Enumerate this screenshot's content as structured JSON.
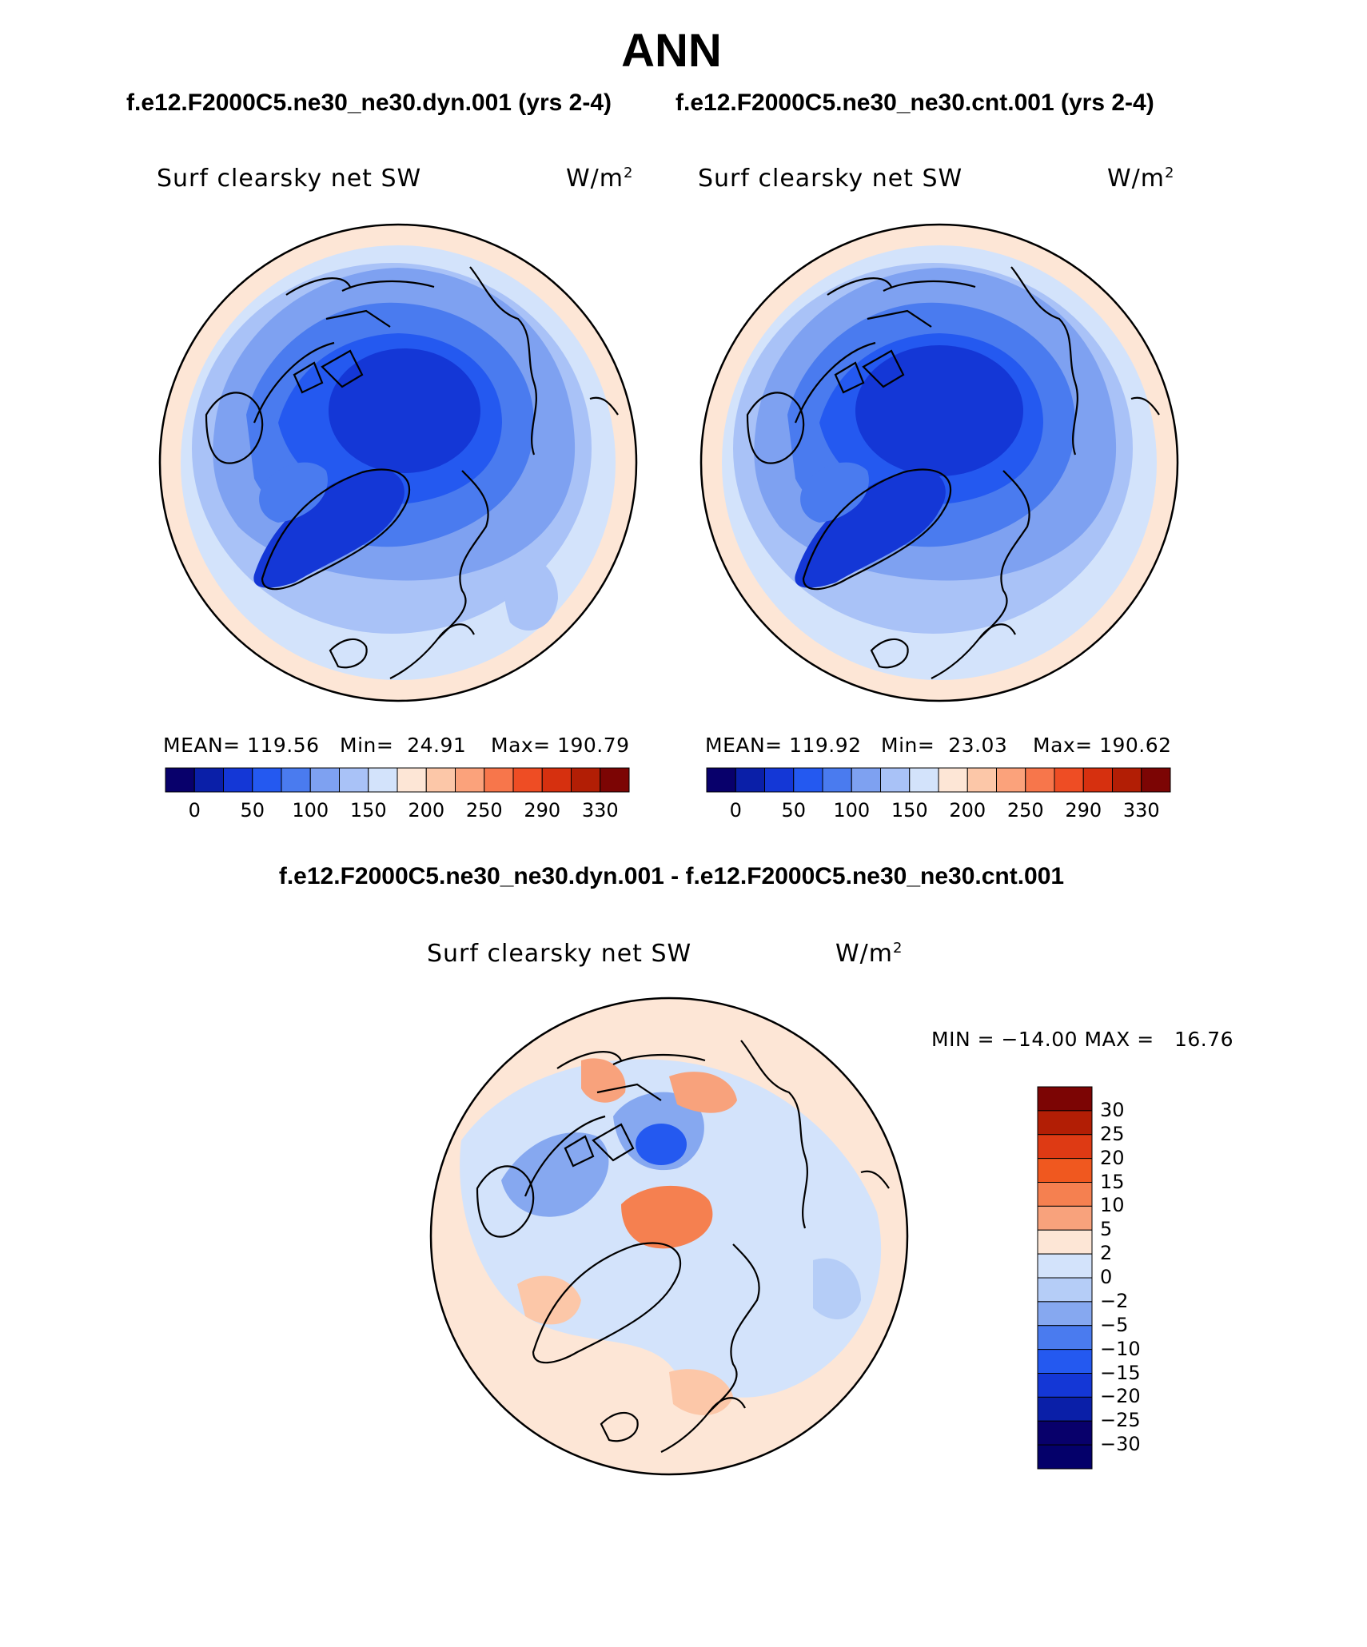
{
  "figure": {
    "title": "ANN",
    "case_a": "f.e12.F2000C5.ne30_ne30.dyn.001 (yrs 2-4)",
    "case_b": "f.e12.F2000C5.ne30_ne30.cnt.001 (yrs 2-4)",
    "diff_title": "f.e12.F2000C5.ne30_ne30.dyn.001 - f.e12.F2000C5.ne30_ne30.cnt.001"
  },
  "panels": [
    {
      "variable": "Surf clearsky net SW",
      "units": "W/m",
      "units_exp": "2",
      "mean_text": "MEAN= 119.56",
      "min_text": "Min=  24.91",
      "max_text": "Max= 190.79"
    },
    {
      "variable": "Surf clearsky net SW",
      "units": "W/m",
      "units_exp": "2",
      "mean_text": "MEAN= 119.92",
      "min_text": "Min=  23.03",
      "max_text": "Max= 190.62"
    },
    {
      "variable": "Surf clearsky net SW",
      "units": "W/m",
      "units_exp": "2",
      "minmax_text": "MIN = −14.00 MAX =   16.76"
    }
  ],
  "colorbar_abs": {
    "tick_labels": [
      "0",
      "50",
      "100",
      "150",
      "200",
      "250",
      "290",
      "330"
    ],
    "colors": [
      "#08006b",
      "#0a1fa8",
      "#1437d6",
      "#2459f0",
      "#4a7bef",
      "#7ea1f1",
      "#a9c2f7",
      "#d3e3fb",
      "#fde6d6",
      "#fcc7a8",
      "#fba27b",
      "#f7764b",
      "#ee4d24",
      "#d6300f",
      "#b21e05",
      "#7c0504"
    ]
  },
  "colorbar_diff": {
    "tick_labels": [
      "30",
      "25",
      "20",
      "15",
      "10",
      "5",
      "2",
      "0",
      "−2",
      "−5",
      "−10",
      "−15",
      "−20",
      "−25",
      "−30"
    ],
    "colors": [
      "#7c0504",
      "#b21e05",
      "#de3a14",
      "#f0581f",
      "#f58050",
      "#f8a27c",
      "#fde6d6",
      "#d3e3fb",
      "#b5cdf7",
      "#86a8f0",
      "#4a7bef",
      "#2459f0",
      "#1437d6",
      "#0a1fa8",
      "#08006b",
      "#04006a"
    ]
  }
}
